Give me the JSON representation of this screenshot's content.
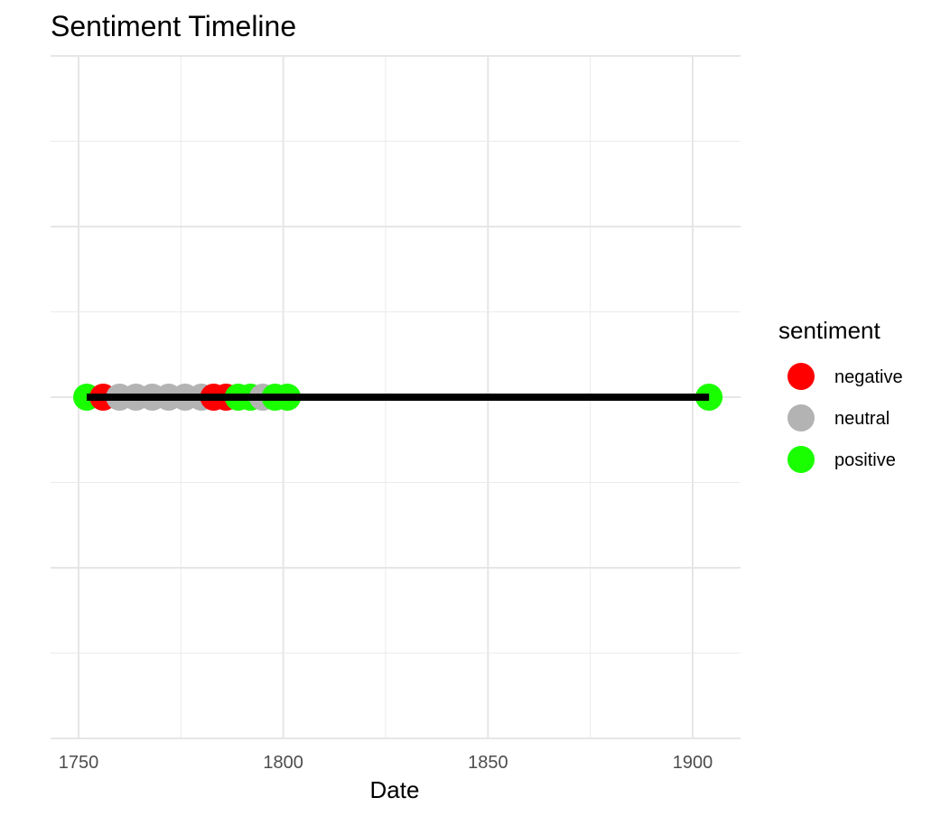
{
  "chart_data": {
    "type": "scatter",
    "title": "Sentiment Timeline",
    "xlabel": "Date",
    "ylabel": "",
    "xlim": [
      1751,
      1905
    ],
    "x_ticks": [
      1750,
      1800,
      1850,
      1900
    ],
    "grid": true,
    "timeline_line": {
      "from": 1752,
      "to": 1904,
      "color": "#000000"
    },
    "points": [
      {
        "x": 1752,
        "sentiment": "positive"
      },
      {
        "x": 1756,
        "sentiment": "negative"
      },
      {
        "x": 1760,
        "sentiment": "neutral"
      },
      {
        "x": 1764,
        "sentiment": "neutral"
      },
      {
        "x": 1768,
        "sentiment": "neutral"
      },
      {
        "x": 1772,
        "sentiment": "neutral"
      },
      {
        "x": 1776,
        "sentiment": "neutral"
      },
      {
        "x": 1780,
        "sentiment": "neutral"
      },
      {
        "x": 1783,
        "sentiment": "negative"
      },
      {
        "x": 1786,
        "sentiment": "negative"
      },
      {
        "x": 1789,
        "sentiment": "positive"
      },
      {
        "x": 1792,
        "sentiment": "positive"
      },
      {
        "x": 1795,
        "sentiment": "neutral"
      },
      {
        "x": 1798,
        "sentiment": "positive"
      },
      {
        "x": 1801,
        "sentiment": "positive"
      },
      {
        "x": 1904,
        "sentiment": "positive"
      }
    ],
    "legend": {
      "title": "sentiment",
      "placement": "right",
      "entries": [
        {
          "label": "negative",
          "color": "#ff0000"
        },
        {
          "label": "neutral",
          "color": "#b3b3b3"
        },
        {
          "label": "positive",
          "color": "#1aff00"
        }
      ]
    }
  }
}
